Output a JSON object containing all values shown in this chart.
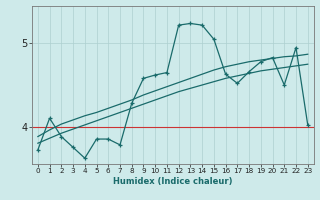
{
  "title": "",
  "xlabel": "Humidex (Indice chaleur)",
  "xlim": [
    -0.5,
    23.5
  ],
  "ylim": [
    3.55,
    5.45
  ],
  "yticks": [
    4,
    5
  ],
  "xticks": [
    0,
    1,
    2,
    3,
    4,
    5,
    6,
    7,
    8,
    9,
    10,
    11,
    12,
    13,
    14,
    15,
    16,
    17,
    18,
    19,
    20,
    21,
    22,
    23
  ],
  "bg_color": "#ceeaea",
  "grid_color": "#add0d0",
  "line_color": "#1a6b6b",
  "red_line_color": "#cc3333",
  "main_line": [
    3.72,
    4.1,
    3.88,
    3.75,
    3.62,
    3.85,
    3.85,
    3.78,
    4.28,
    4.58,
    4.62,
    4.65,
    5.22,
    5.24,
    5.22,
    5.05,
    4.63,
    4.52,
    4.66,
    4.78,
    4.83,
    4.5,
    4.95,
    4.02
  ],
  "smooth_line1": [
    3.88,
    3.96,
    4.03,
    4.08,
    4.13,
    4.17,
    4.22,
    4.27,
    4.32,
    4.38,
    4.43,
    4.48,
    4.53,
    4.58,
    4.63,
    4.68,
    4.72,
    4.75,
    4.78,
    4.8,
    4.82,
    4.84,
    4.85,
    4.87
  ],
  "smooth_line2": [
    3.8,
    3.86,
    3.92,
    3.97,
    4.02,
    4.07,
    4.12,
    4.17,
    4.22,
    4.27,
    4.32,
    4.37,
    4.42,
    4.46,
    4.5,
    4.54,
    4.58,
    4.61,
    4.64,
    4.67,
    4.69,
    4.71,
    4.73,
    4.75
  ],
  "red_line_y": 4.0
}
